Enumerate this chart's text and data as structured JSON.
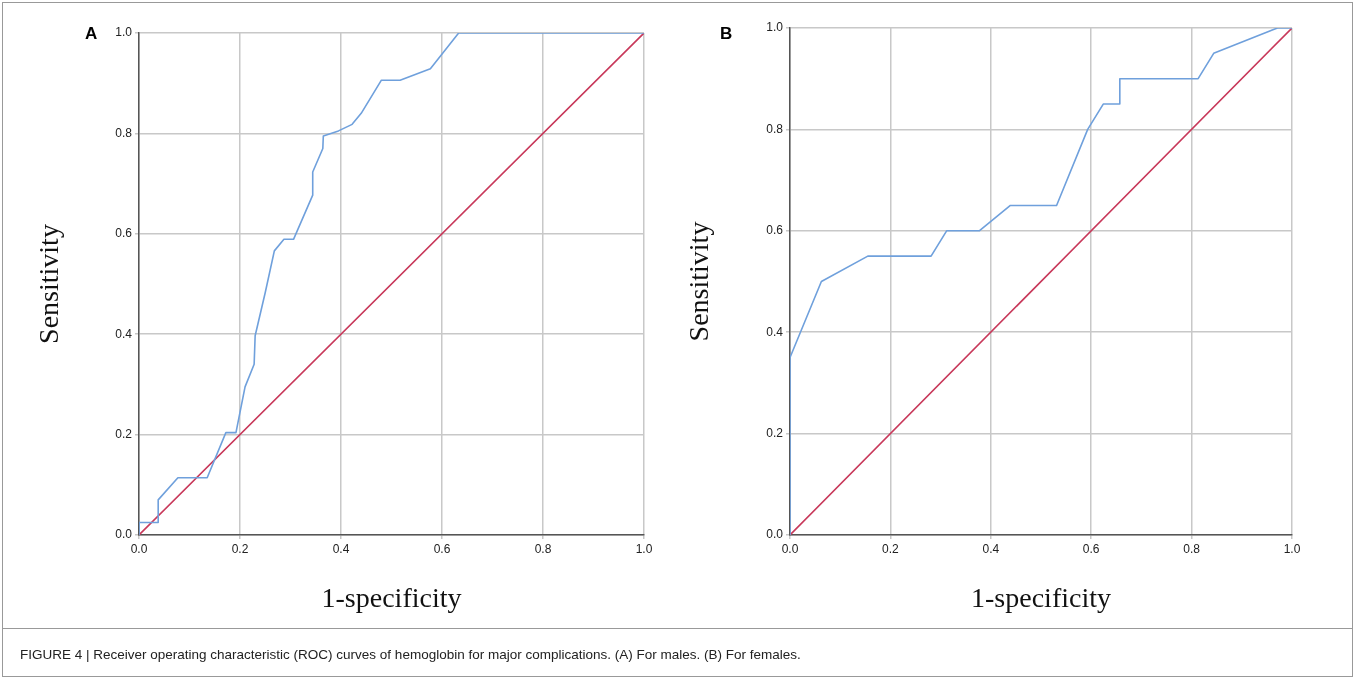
{
  "chart_data": [
    {
      "type": "line",
      "title": "A",
      "xlabel": "1-specificity",
      "ylabel": "Sensitivity",
      "xlim": [
        0,
        1
      ],
      "ylim": [
        0,
        1
      ],
      "xticks": [
        {
          "value": 0,
          "label": "0.0"
        },
        {
          "value": 0.2,
          "label": "0.2"
        },
        {
          "value": 0.4,
          "label": "0.4"
        },
        {
          "value": 0.6,
          "label": "0.6"
        },
        {
          "value": 0.8,
          "label": "0.8"
        },
        {
          "value": 1,
          "label": "1.0"
        }
      ],
      "yticks": [
        {
          "value": 0,
          "label": "0.0"
        },
        {
          "value": 0.2,
          "label": "0.2"
        },
        {
          "value": 0.4,
          "label": "0.4"
        },
        {
          "value": 0.6,
          "label": "0.6"
        },
        {
          "value": 0.8,
          "label": "0.8"
        },
        {
          "value": 1,
          "label": "1.0"
        }
      ],
      "grid": true,
      "legend": false,
      "marker": "none",
      "line_style": "solid",
      "series": [
        {
          "color": "#6fa0dc",
          "x": [
            0,
            0,
            0.038,
            0.038,
            0.077,
            0.135,
            0.172,
            0.192,
            0.21,
            0.228,
            0.23,
            0.25,
            0.268,
            0.287,
            0.306,
            0.344,
            0.344,
            0.364,
            0.365,
            0.395,
            0.422,
            0.44,
            0.48,
            0.517,
            0.577,
            0.633,
            1
          ],
          "values": [
            0,
            0.025,
            0.025,
            0.07,
            0.114,
            0.114,
            0.204,
            0.204,
            0.295,
            0.34,
            0.397,
            0.483,
            0.566,
            0.589,
            0.589,
            0.677,
            0.723,
            0.77,
            0.795,
            0.805,
            0.818,
            0.84,
            0.906,
            0.906,
            0.929,
            1,
            1
          ]
        },
        {
          "color": "#c8385a",
          "x": [
            0,
            1
          ],
          "values": [
            0,
            1
          ]
        }
      ]
    },
    {
      "type": "line",
      "title": "B",
      "xlabel": "1-specificity",
      "ylabel": "Sensitivity",
      "xlim": [
        0,
        1
      ],
      "ylim": [
        0,
        1
      ],
      "xticks": [
        {
          "value": 0,
          "label": "0.0"
        },
        {
          "value": 0.2,
          "label": "0.2"
        },
        {
          "value": 0.4,
          "label": "0.4"
        },
        {
          "value": 0.6,
          "label": "0.6"
        },
        {
          "value": 0.8,
          "label": "0.8"
        },
        {
          "value": 1,
          "label": "1.0"
        }
      ],
      "yticks": [
        {
          "value": 0,
          "label": "0.0"
        },
        {
          "value": 0.2,
          "label": "0.2"
        },
        {
          "value": 0.4,
          "label": "0.4"
        },
        {
          "value": 0.6,
          "label": "0.6"
        },
        {
          "value": 0.8,
          "label": "0.8"
        },
        {
          "value": 1,
          "label": "1.0"
        }
      ],
      "grid": true,
      "legend": false,
      "marker": "none",
      "line_style": "solid",
      "annotations": [
        "FIGURE 4 | Receiver operating characteristic (ROC) curves of hemoglobin for major complications. (A) For males. (B) For females."
      ],
      "series": [
        {
          "color": "#6fa0dc",
          "x": [
            0,
            0,
            0.0625,
            0.155,
            0.281,
            0.312,
            0.377,
            0.439,
            0.531,
            0.593,
            0.624,
            0.657,
            0.657,
            0.813,
            0.844,
            0.971,
            1
          ],
          "values": [
            0,
            0.35,
            0.5,
            0.55,
            0.55,
            0.6,
            0.6,
            0.65,
            0.65,
            0.8,
            0.85,
            0.85,
            0.9,
            0.9,
            0.95,
            1,
            1
          ]
        },
        {
          "color": "#c8385a",
          "x": [
            0,
            1
          ],
          "values": [
            0,
            1
          ]
        }
      ]
    }
  ]
}
